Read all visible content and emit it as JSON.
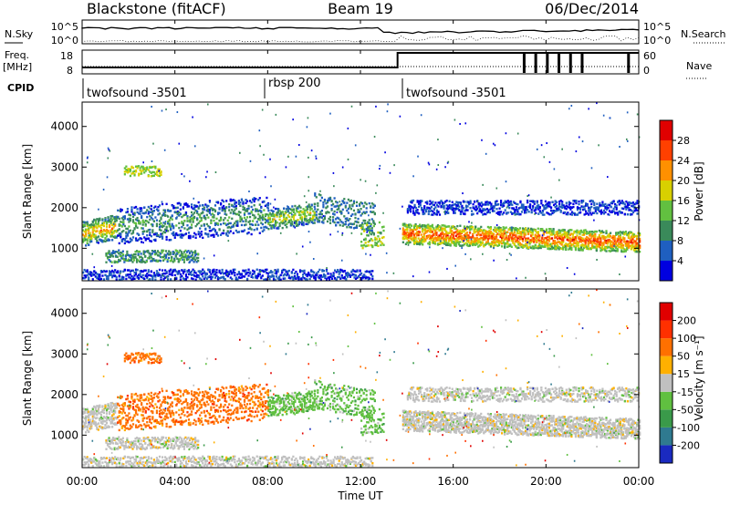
{
  "header": {
    "station": "Blackstone (fitACF)",
    "beam": "Beam 19",
    "date": "06/Dec/2014"
  },
  "top_panels": {
    "nsky_label": "N.Sky",
    "nsky_ticks": [
      "10^5",
      "10^0"
    ],
    "nsearch_label": "N.Search",
    "nsearch_ticks": [
      "10^5",
      "10^0"
    ],
    "freq_label": "Freq.",
    "freq_unit": "[MHz]",
    "freq_ticks": [
      "18",
      "8"
    ],
    "nave_label": "Nave",
    "nave_ticks": [
      "60",
      "0"
    ],
    "cpid_label": "CPID",
    "cpid_segments": [
      "twofsound -3501",
      "rbsp 200",
      "twofsound -3501"
    ]
  },
  "chart_data": [
    {
      "type": "heatmap",
      "name": "power",
      "ylabel": "Slant Range [km]",
      "yticks": [
        "1000",
        "2000",
        "3000",
        "4000"
      ],
      "ylim": [
        200,
        4600
      ],
      "xlim": [
        0,
        24
      ],
      "colorbar_label": "Power [dB]",
      "colorbar_ticks": [
        "4",
        "8",
        "12",
        "16",
        "20",
        "24",
        "28"
      ],
      "colorbar_colors": [
        "#0000e0",
        "#1f5fc0",
        "#3a8a5a",
        "#62c040",
        "#d8d000",
        "#ff9000",
        "#ff4000",
        "#e00000"
      ]
    },
    {
      "type": "heatmap",
      "name": "velocity",
      "ylabel": "Slant Range [km]",
      "yticks": [
        "1000",
        "2000",
        "3000",
        "4000"
      ],
      "ylim": [
        200,
        4600
      ],
      "xlim": [
        0,
        24
      ],
      "xlabel": "Time UT",
      "xticks": [
        "00:00",
        "04:00",
        "08:00",
        "12:00",
        "16:00",
        "20:00",
        "00:00"
      ],
      "colorbar_label": "Velocity [m s⁻¹]",
      "colorbar_ticks": [
        "200",
        "100",
        "50",
        "15",
        "-15",
        "-50",
        "-100",
        "-200"
      ],
      "colorbar_colors": [
        "#1a2ac0",
        "#2f7a90",
        "#3a9a4a",
        "#60c040",
        "#c0c0c0",
        "#ffb000",
        "#ff7000",
        "#ff3000",
        "#e00000"
      ]
    }
  ]
}
